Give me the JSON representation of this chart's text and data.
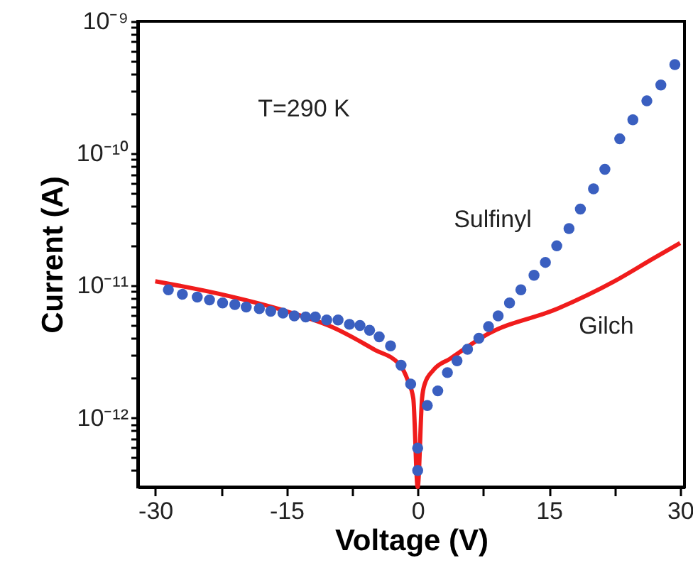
{
  "chart_data": {
    "type": "scatter",
    "xlabel": "Voltage (V)",
    "ylabel": "Current (A)",
    "annotations": [
      "T=290 K"
    ],
    "log": "y",
    "grid": false,
    "xlim": [
      -32,
      30.5
    ],
    "xticks": [
      -30,
      {
        "value": -22.5,
        "label": null
      },
      -15,
      {
        "value": -7.5,
        "label": null
      },
      0,
      {
        "value": 7.5,
        "label": null
      },
      15,
      {
        "value": 22.5,
        "label": null
      },
      30
    ],
    "ylim": [
      3e-13,
      1e-09
    ],
    "yticks": [
      {
        "value": 4e-13,
        "label": null
      },
      {
        "value": 5e-13,
        "label": null
      },
      {
        "value": 6e-13,
        "label": null
      },
      {
        "value": 7e-13,
        "label": null
      },
      {
        "value": 8e-13,
        "label": null
      },
      {
        "value": 9e-13,
        "label": null
      },
      {
        "value": 1e-12,
        "label": "10⁻¹²"
      },
      {
        "value": 2e-12,
        "label": null
      },
      {
        "value": 3e-12,
        "label": null
      },
      {
        "value": 4e-12,
        "label": null
      },
      {
        "value": 5e-12,
        "label": null
      },
      {
        "value": 6e-12,
        "label": null
      },
      {
        "value": 7e-12,
        "label": null
      },
      {
        "value": 8e-12,
        "label": null
      },
      {
        "value": 9e-12,
        "label": null
      },
      {
        "value": 1e-11,
        "label": "10⁻¹¹"
      },
      {
        "value": 2e-11,
        "label": null
      },
      {
        "value": 3e-11,
        "label": null
      },
      {
        "value": 4e-11,
        "label": null
      },
      {
        "value": 5e-11,
        "label": null
      },
      {
        "value": 6e-11,
        "label": null
      },
      {
        "value": 7e-11,
        "label": null
      },
      {
        "value": 8e-11,
        "label": null
      },
      {
        "value": 9e-11,
        "label": null
      },
      {
        "value": 1e-10,
        "label": "10⁻¹⁰"
      },
      {
        "value": 2e-10,
        "label": null
      },
      {
        "value": 3e-10,
        "label": null
      },
      {
        "value": 4e-10,
        "label": null
      },
      {
        "value": 5e-10,
        "label": null
      },
      {
        "value": 6e-10,
        "label": null
      },
      {
        "value": 7e-10,
        "label": null
      },
      {
        "value": 8e-10,
        "label": null
      },
      {
        "value": 9e-10,
        "label": null
      },
      {
        "value": 1e-09,
        "label": "10⁻⁹"
      }
    ],
    "series": [
      {
        "name": "Sulfinyl",
        "marker": "circle",
        "color": "#3a5fc0",
        "x": [
          -28.5,
          -26.9,
          -25.2,
          -23.8,
          -22.3,
          -20.9,
          -19.6,
          -18.1,
          -16.8,
          -15.4,
          -14.1,
          -12.8,
          -11.7,
          -10.4,
          -9.1,
          -7.8,
          -6.6,
          -5.5,
          -4.4,
          -3.1,
          -1.9,
          -0.8,
          0,
          0,
          1.1,
          2.3,
          3.4,
          4.5,
          5.7,
          7.0,
          8.1,
          9.2,
          10.5,
          11.8,
          13.3,
          14.6,
          15.9,
          17.3,
          18.6,
          20.1,
          21.4,
          23.1,
          24.6,
          26.2,
          27.8,
          29.4
        ],
        "values": [
          9.3e-12,
          8.6e-12,
          8.2e-12,
          7.8e-12,
          7.4e-12,
          7.2e-12,
          6.9e-12,
          6.7e-12,
          6.4e-12,
          6.2e-12,
          5.9e-12,
          5.8e-12,
          5.8e-12,
          5.5e-12,
          5.5e-12,
          5.1e-12,
          5e-12,
          4.6e-12,
          4.1e-12,
          3.5e-12,
          2.5e-12,
          1.8e-12,
          5.9e-13,
          4e-13,
          1.24e-12,
          1.6e-12,
          2.2e-12,
          2.7e-12,
          3.3e-12,
          4e-12,
          4.9e-12,
          5.9e-12,
          7.4e-12,
          9.3e-12,
          1.2e-11,
          1.5e-11,
          2e-11,
          2.7e-11,
          3.8e-11,
          5.4e-11,
          7.6e-11,
          1.29e-10,
          1.8e-10,
          2.5e-10,
          3.3e-10,
          4.7e-10
        ]
      },
      {
        "name": "Gilch",
        "type": "line",
        "marker": "none",
        "line_style": "solid",
        "color": "#f01c1c",
        "x": [
          -30,
          -22.8,
          -15,
          -9.9,
          -5,
          -2,
          -1.1,
          -0.5,
          0,
          0.5,
          0.8,
          1.8,
          3.7,
          8,
          16,
          22.5,
          26.9,
          30
        ],
        "values": [
          1.08e-11,
          8.7e-12,
          6.4e-12,
          4.9e-12,
          3.3e-12,
          2.5e-12,
          1.9e-12,
          1.4e-12,
          3e-13,
          1.4e-12,
          1.8e-12,
          2.3e-12,
          2.8e-12,
          4.3e-12,
          6.7e-12,
          1.08e-11,
          1.6e-11,
          2.1e-11
        ]
      }
    ]
  }
}
